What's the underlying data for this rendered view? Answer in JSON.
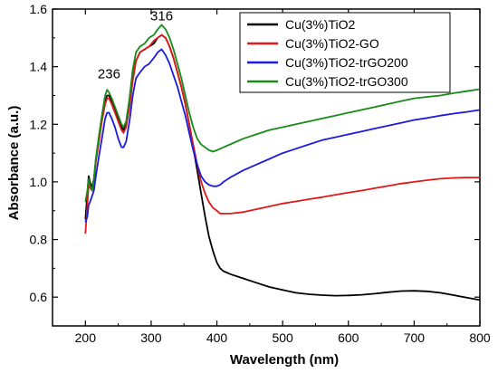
{
  "chart_data": {
    "type": "line",
    "title": "",
    "xlabel": "Wavelength (nm)",
    "ylabel": "Absorbance (a.u.)",
    "xlim": [
      150,
      800
    ],
    "ylim": [
      0.5,
      1.6
    ],
    "xticks": [
      200,
      300,
      400,
      500,
      600,
      700,
      800
    ],
    "yticks": [
      0.6,
      0.8,
      1.0,
      1.2,
      1.4,
      1.6
    ],
    "ytick_labels": [
      "0.6",
      "0.8",
      "1.0",
      "1.2",
      "1.4",
      "1.6"
    ],
    "grid": false,
    "legend_position": "top-right",
    "annotations": [
      {
        "text": "236",
        "x": 236,
        "y": 1.36
      },
      {
        "text": "316",
        "x": 316,
        "y": 1.56
      }
    ],
    "series": [
      {
        "name": "Cu(3%)TiO2",
        "color": "#000000",
        "x": [
          200,
          203,
          205,
          207,
          210,
          213,
          216,
          220,
          225,
          230,
          233,
          236,
          240,
          245,
          250,
          255,
          258,
          262,
          267,
          272,
          277,
          283,
          290,
          297,
          304,
          310,
          316,
          322,
          328,
          334,
          340,
          346,
          352,
          358,
          364,
          370,
          376,
          382,
          388,
          394,
          400,
          405,
          410,
          420,
          440,
          460,
          480,
          500,
          520,
          540,
          560,
          580,
          600,
          620,
          640,
          660,
          680,
          700,
          720,
          740,
          760,
          780,
          800
        ],
        "y": [
          0.87,
          0.96,
          1.02,
          1.0,
          0.98,
          1.01,
          1.08,
          1.14,
          1.22,
          1.28,
          1.3,
          1.3,
          1.28,
          1.25,
          1.22,
          1.19,
          1.18,
          1.2,
          1.27,
          1.36,
          1.42,
          1.45,
          1.46,
          1.47,
          1.48,
          1.5,
          1.51,
          1.5,
          1.47,
          1.43,
          1.38,
          1.33,
          1.27,
          1.2,
          1.12,
          1.04,
          0.96,
          0.88,
          0.81,
          0.76,
          0.72,
          0.7,
          0.69,
          0.68,
          0.665,
          0.65,
          0.635,
          0.625,
          0.615,
          0.61,
          0.607,
          0.605,
          0.606,
          0.608,
          0.612,
          0.617,
          0.621,
          0.622,
          0.62,
          0.615,
          0.607,
          0.598,
          0.59
        ]
      },
      {
        "name": "Cu(3%)TiO2-GO",
        "color": "#e01818",
        "x": [
          200,
          203,
          205,
          207,
          210,
          213,
          216,
          220,
          225,
          230,
          233,
          236,
          240,
          245,
          250,
          255,
          258,
          262,
          267,
          272,
          277,
          283,
          290,
          297,
          304,
          310,
          316,
          322,
          328,
          334,
          340,
          346,
          352,
          358,
          364,
          370,
          376,
          382,
          388,
          394,
          400,
          405,
          410,
          420,
          440,
          460,
          480,
          500,
          520,
          540,
          560,
          580,
          600,
          620,
          640,
          660,
          680,
          700,
          720,
          740,
          760,
          780,
          800
        ],
        "y": [
          0.82,
          0.92,
          0.99,
          0.98,
          0.97,
          1.0,
          1.07,
          1.13,
          1.21,
          1.27,
          1.29,
          1.29,
          1.27,
          1.24,
          1.21,
          1.18,
          1.17,
          1.19,
          1.26,
          1.35,
          1.42,
          1.45,
          1.46,
          1.47,
          1.49,
          1.5,
          1.51,
          1.5,
          1.47,
          1.43,
          1.38,
          1.33,
          1.27,
          1.2,
          1.13,
          1.06,
          1.0,
          0.96,
          0.93,
          0.91,
          0.9,
          0.89,
          0.89,
          0.89,
          0.895,
          0.905,
          0.915,
          0.925,
          0.932,
          0.94,
          0.947,
          0.955,
          0.963,
          0.97,
          0.978,
          0.986,
          0.994,
          1.0,
          1.006,
          1.011,
          1.014,
          1.015,
          1.015
        ]
      },
      {
        "name": "Cu(3%)TiO2-trGO200",
        "color": "#1a1ae0",
        "x": [
          200,
          203,
          205,
          207,
          210,
          213,
          216,
          220,
          225,
          230,
          233,
          236,
          240,
          245,
          250,
          255,
          258,
          262,
          267,
          272,
          277,
          283,
          290,
          297,
          304,
          310,
          316,
          322,
          328,
          334,
          340,
          346,
          352,
          358,
          364,
          370,
          376,
          382,
          388,
          394,
          400,
          405,
          410,
          420,
          440,
          460,
          480,
          500,
          520,
          540,
          560,
          580,
          600,
          620,
          640,
          660,
          680,
          700,
          720,
          740,
          760,
          780,
          800
        ],
        "y": [
          0.86,
          0.88,
          0.92,
          0.93,
          0.95,
          0.97,
          1.02,
          1.08,
          1.15,
          1.22,
          1.24,
          1.24,
          1.22,
          1.19,
          1.15,
          1.12,
          1.12,
          1.14,
          1.21,
          1.3,
          1.36,
          1.38,
          1.4,
          1.41,
          1.43,
          1.45,
          1.46,
          1.44,
          1.41,
          1.37,
          1.33,
          1.28,
          1.23,
          1.17,
          1.11,
          1.06,
          1.02,
          1.0,
          0.99,
          0.985,
          0.985,
          0.99,
          1.0,
          1.015,
          1.04,
          1.06,
          1.08,
          1.1,
          1.115,
          1.13,
          1.145,
          1.155,
          1.165,
          1.175,
          1.185,
          1.195,
          1.205,
          1.215,
          1.222,
          1.23,
          1.237,
          1.243,
          1.25
        ]
      },
      {
        "name": "Cu(3%)TiO2-trGO300",
        "color": "#178a17",
        "x": [
          200,
          203,
          205,
          207,
          210,
          213,
          216,
          220,
          225,
          230,
          233,
          236,
          240,
          245,
          250,
          255,
          258,
          262,
          267,
          272,
          277,
          283,
          290,
          297,
          304,
          310,
          316,
          322,
          328,
          334,
          340,
          346,
          352,
          358,
          364,
          370,
          376,
          382,
          388,
          394,
          400,
          405,
          410,
          420,
          440,
          460,
          480,
          500,
          520,
          540,
          560,
          580,
          600,
          620,
          640,
          660,
          680,
          700,
          720,
          740,
          760,
          780,
          800
        ],
        "y": [
          0.93,
          0.97,
          1.01,
          0.99,
          0.97,
          1.01,
          1.08,
          1.15,
          1.23,
          1.3,
          1.32,
          1.31,
          1.29,
          1.26,
          1.23,
          1.2,
          1.19,
          1.21,
          1.29,
          1.39,
          1.45,
          1.47,
          1.48,
          1.5,
          1.51,
          1.53,
          1.545,
          1.53,
          1.5,
          1.46,
          1.41,
          1.36,
          1.3,
          1.24,
          1.19,
          1.15,
          1.13,
          1.12,
          1.11,
          1.105,
          1.11,
          1.115,
          1.12,
          1.13,
          1.15,
          1.165,
          1.18,
          1.19,
          1.2,
          1.21,
          1.22,
          1.23,
          1.24,
          1.25,
          1.26,
          1.27,
          1.28,
          1.29,
          1.295,
          1.3,
          1.308,
          1.315,
          1.322
        ]
      }
    ]
  }
}
